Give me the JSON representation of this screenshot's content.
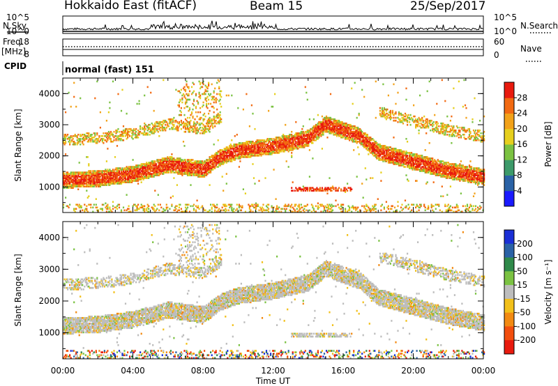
{
  "header": {
    "radar": "Hokkaido East (fitACF)",
    "beam": "Beam 15",
    "date": "25/Sep/2017"
  },
  "strip": {
    "nsky_label": "N.Sky",
    "nsearch_label": "N.Search",
    "freq_label": "Freq.",
    "freq_unit": "[MHz]",
    "nave_label": "Nave",
    "cpid_label": "CPID",
    "cpid_value": "normal (fast) 151",
    "noise_ticks": [
      "10^5",
      "10^0"
    ],
    "freq_ticks": [
      "18",
      "8"
    ],
    "nave_ticks": [
      "60",
      "0"
    ]
  },
  "chart_data": [
    {
      "type": "heatmap",
      "ylabel": "Slant Range [km]",
      "xlabel": "",
      "x_ticks": [
        "00:00",
        "04:00",
        "08:00",
        "12:00",
        "16:00",
        "20:00",
        "00:00"
      ],
      "xlim_hours": [
        0,
        24
      ],
      "y_ticks": [
        1000,
        2000,
        3000,
        4000
      ],
      "ylim": [
        180,
        4500
      ],
      "colorbar": {
        "label": "Power [dB]",
        "ticks": [
          4,
          8,
          12,
          16,
          20,
          24,
          28
        ],
        "range": [
          0,
          32
        ],
        "colors": [
          "#1a1aff",
          "#2a62a6",
          "#3d9a6a",
          "#7bc242",
          "#e6cf1e",
          "#f2a21a",
          "#f26a12",
          "#e81a0e"
        ]
      },
      "main_echo_band_km": [
        [
          0,
          1200
        ],
        [
          2,
          1250
        ],
        [
          4,
          1400
        ],
        [
          6,
          1700
        ],
        [
          8,
          1550
        ],
        [
          9,
          1950
        ],
        [
          10,
          2150
        ],
        [
          12,
          2300
        ],
        [
          14,
          2550
        ],
        [
          15,
          3000
        ],
        [
          17,
          2600
        ],
        [
          18,
          2100
        ],
        [
          20,
          1800
        ],
        [
          22,
          1500
        ],
        [
          24,
          1300
        ]
      ]
    },
    {
      "type": "heatmap",
      "ylabel": "Slant Range [km]",
      "xlabel": "Time UT",
      "x_ticks": [
        "00:00",
        "04:00",
        "08:00",
        "12:00",
        "16:00",
        "20:00",
        "00:00"
      ],
      "xlim_hours": [
        0,
        24
      ],
      "y_ticks": [
        1000,
        2000,
        3000,
        4000
      ],
      "ylim": [
        180,
        4500
      ],
      "colorbar": {
        "label": "Velocity [m s⁻¹]",
        "ticks": [
          200,
          100,
          50,
          15,
          -15,
          -50,
          -100,
          -200
        ],
        "colors": [
          "#1a2fd6",
          "#2a62a6",
          "#2f8a4a",
          "#7bc242",
          "#bdbdbd",
          "#f2c01a",
          "#f28a12",
          "#f24e0e",
          "#e81a0e"
        ]
      }
    }
  ]
}
